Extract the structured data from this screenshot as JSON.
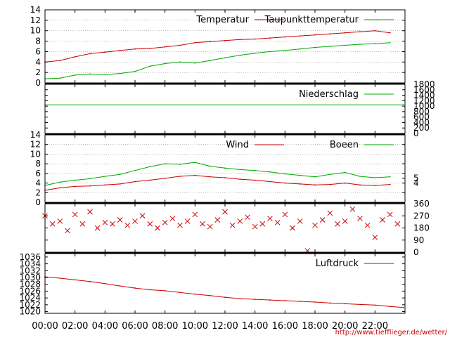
{
  "chart_data": [
    {
      "type": "line",
      "panel": "temperature",
      "ylim": [
        0,
        14
      ],
      "yticks": [
        "0",
        "2",
        "4",
        "6",
        "8",
        "10",
        "12",
        "14"
      ],
      "grid": true,
      "legend_position": "top-right",
      "series": [
        {
          "name": "Temperatur",
          "color": "#cc0000",
          "x": [
            0,
            1,
            2,
            3,
            4,
            5,
            6,
            7,
            8,
            9,
            10,
            11,
            12,
            13,
            14,
            15,
            16,
            17,
            18,
            19,
            20,
            21,
            22,
            23
          ],
          "values": [
            4.0,
            4.3,
            5.0,
            5.6,
            5.9,
            6.2,
            6.5,
            6.6,
            6.9,
            7.2,
            7.7,
            7.9,
            8.1,
            8.3,
            8.4,
            8.6,
            8.8,
            9.0,
            9.2,
            9.4,
            9.6,
            9.8,
            10.0,
            9.6
          ]
        },
        {
          "name": "Taupunkttemperatur",
          "color": "#00aa00",
          "x": [
            0,
            1,
            2,
            3,
            4,
            5,
            6,
            7,
            8,
            9,
            10,
            11,
            12,
            13,
            14,
            15,
            16,
            17,
            18,
            19,
            20,
            21,
            22,
            23
          ],
          "values": [
            0.8,
            0.9,
            1.5,
            1.7,
            1.6,
            1.8,
            2.2,
            3.2,
            3.7,
            4.0,
            3.8,
            4.3,
            4.8,
            5.3,
            5.7,
            6.0,
            6.2,
            6.5,
            6.8,
            7.0,
            7.2,
            7.4,
            7.5,
            7.7
          ]
        }
      ]
    },
    {
      "type": "line",
      "panel": "precipitation",
      "ylim": [
        0,
        1800
      ],
      "yticks_right": [
        "0",
        "200",
        "400",
        "600",
        "800",
        "1000",
        "1200",
        "1400",
        "1600",
        "1800"
      ],
      "legend_position": "top-right",
      "series": [
        {
          "name": "Niederschlag",
          "color": "#00aa00",
          "x": [
            0,
            23.9
          ],
          "values": [
            1050,
            1050
          ]
        }
      ]
    },
    {
      "type": "line",
      "panel": "wind",
      "ylim": [
        0,
        14
      ],
      "yticks": [
        "0",
        "2",
        "4",
        "6",
        "8",
        "10",
        "12",
        "14"
      ],
      "yticks_right": [
        "4",
        "5"
      ],
      "grid": true,
      "legend_position": "top-right",
      "series": [
        {
          "name": "Wind",
          "color": "#cc0000",
          "x": [
            0,
            1,
            2,
            3,
            4,
            5,
            6,
            7,
            8,
            9,
            10,
            11,
            12,
            13,
            14,
            15,
            16,
            17,
            18,
            19,
            20,
            21,
            22,
            23
          ],
          "values": [
            2.5,
            3.0,
            3.3,
            3.4,
            3.6,
            3.8,
            4.3,
            4.6,
            5.0,
            5.4,
            5.6,
            5.3,
            5.1,
            4.8,
            4.6,
            4.3,
            4.0,
            3.8,
            3.6,
            3.7,
            4.0,
            3.6,
            3.5,
            3.7
          ]
        },
        {
          "name": "Boeen",
          "color": "#00aa00",
          "x": [
            0,
            1,
            2,
            3,
            4,
            5,
            6,
            7,
            8,
            9,
            10,
            11,
            12,
            13,
            14,
            15,
            16,
            17,
            18,
            19,
            20,
            21,
            22,
            23
          ],
          "values": [
            3.5,
            4.2,
            4.6,
            4.9,
            5.4,
            5.8,
            6.6,
            7.4,
            8.0,
            7.9,
            8.3,
            7.5,
            7.1,
            6.8,
            6.6,
            6.3,
            5.9,
            5.6,
            5.3,
            5.8,
            6.2,
            5.4,
            5.1,
            5.3
          ]
        }
      ]
    },
    {
      "type": "scatter",
      "panel": "wind_direction",
      "ylim": [
        0,
        360
      ],
      "yticks_right": [
        "0",
        "90",
        "180",
        "270",
        "360"
      ],
      "series": [
        {
          "color": "#cc0000",
          "x": [
            0,
            0.5,
            1,
            1.5,
            2,
            2.5,
            3,
            3.5,
            4,
            4.5,
            5,
            5.5,
            6,
            6.5,
            7,
            7.5,
            8,
            8.5,
            9,
            9.5,
            10,
            10.5,
            11,
            11.5,
            12,
            12.5,
            13,
            13.5,
            14,
            14.5,
            15,
            15.5,
            16,
            16.5,
            17,
            17.5,
            18,
            18.5,
            19,
            19.5,
            20,
            20.5,
            21,
            21.5,
            22,
            22.5,
            23,
            23.5
          ],
          "values": [
            270,
            210,
            230,
            160,
            280,
            210,
            300,
            180,
            220,
            210,
            240,
            200,
            230,
            270,
            210,
            180,
            220,
            250,
            200,
            230,
            280,
            210,
            190,
            240,
            300,
            200,
            230,
            260,
            190,
            210,
            250,
            220,
            280,
            180,
            230,
            10,
            200,
            240,
            290,
            210,
            230,
            320,
            250,
            200,
            110,
            240,
            280,
            210
          ]
        }
      ]
    },
    {
      "type": "line",
      "panel": "pressure",
      "ylim": [
        1019.5,
        1037
      ],
      "yticks": [
        "1020",
        "1022",
        "1024",
        "1026",
        "1028",
        "1030",
        "1032",
        "1034",
        "1036"
      ],
      "legend_position": "top-right",
      "series": [
        {
          "name": "Luftdruck",
          "color": "#cc0000",
          "x": [
            0,
            1,
            2,
            3,
            4,
            5,
            6,
            7,
            8,
            9,
            10,
            11,
            12,
            13,
            14,
            15,
            16,
            17,
            18,
            19,
            20,
            21,
            22,
            23,
            23.9
          ],
          "values": [
            1030.2,
            1029.8,
            1029.3,
            1028.8,
            1028.2,
            1027.5,
            1026.9,
            1026.4,
            1026.1,
            1025.6,
            1025.1,
            1024.7,
            1024.2,
            1023.8,
            1023.6,
            1023.4,
            1023.2,
            1023.0,
            1022.8,
            1022.5,
            1022.3,
            1022.1,
            1021.9,
            1021.5,
            1021.2
          ]
        }
      ]
    }
  ],
  "x_axis": {
    "ticks": [
      {
        "value": 0,
        "label": "00:00"
      },
      {
        "value": 2,
        "label": "02:00"
      },
      {
        "value": 4,
        "label": "04:00"
      },
      {
        "value": 6,
        "label": "06:00"
      },
      {
        "value": 8,
        "label": "08:00"
      },
      {
        "value": 10,
        "label": "10:00"
      },
      {
        "value": 12,
        "label": "12:00"
      },
      {
        "value": 14,
        "label": "14:00"
      },
      {
        "value": 16,
        "label": "16:00"
      },
      {
        "value": 18,
        "label": "18:00"
      },
      {
        "value": 20,
        "label": "20:00"
      },
      {
        "value": 22,
        "label": "22:00"
      }
    ],
    "range": [
      0,
      24
    ]
  },
  "credit": "http://www.tiefflieger.de/wetter/",
  "colors": {
    "red": "#cc0000",
    "green": "#00aa00",
    "credit": "#cc0000",
    "grid": "#999999"
  }
}
